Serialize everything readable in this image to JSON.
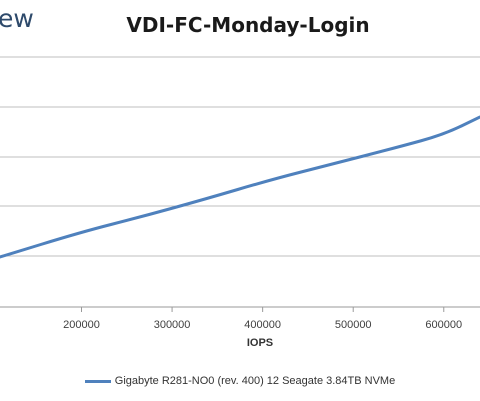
{
  "header": {
    "logo_text": "ew"
  },
  "chart_data": {
    "type": "line",
    "title": "VDI-FC-Monday-Login",
    "xlabel": "IOPS",
    "ylabel": "",
    "x_ticks": [
      200000,
      300000,
      400000,
      500000,
      600000
    ],
    "x_tick_labels": [
      "200000",
      "300000",
      "400000",
      "500000",
      "600000"
    ],
    "xlim": [
      110000,
      640000
    ],
    "grid": true,
    "legend_position": "bottom",
    "series": [
      {
        "name": "Gigabyte R281-NO0 (rev. 400) 12 Seagate 3.84TB NVMe",
        "color": "#4f81bd",
        "points": [
          [
            110000,
            0.2
          ],
          [
            200000,
            0.3
          ],
          [
            265000,
            0.36
          ],
          [
            335000,
            0.43
          ],
          [
            410000,
            0.51
          ],
          [
            475000,
            0.57
          ],
          [
            550000,
            0.64
          ],
          [
            600000,
            0.69
          ],
          [
            640000,
            0.76
          ]
        ]
      }
    ]
  }
}
